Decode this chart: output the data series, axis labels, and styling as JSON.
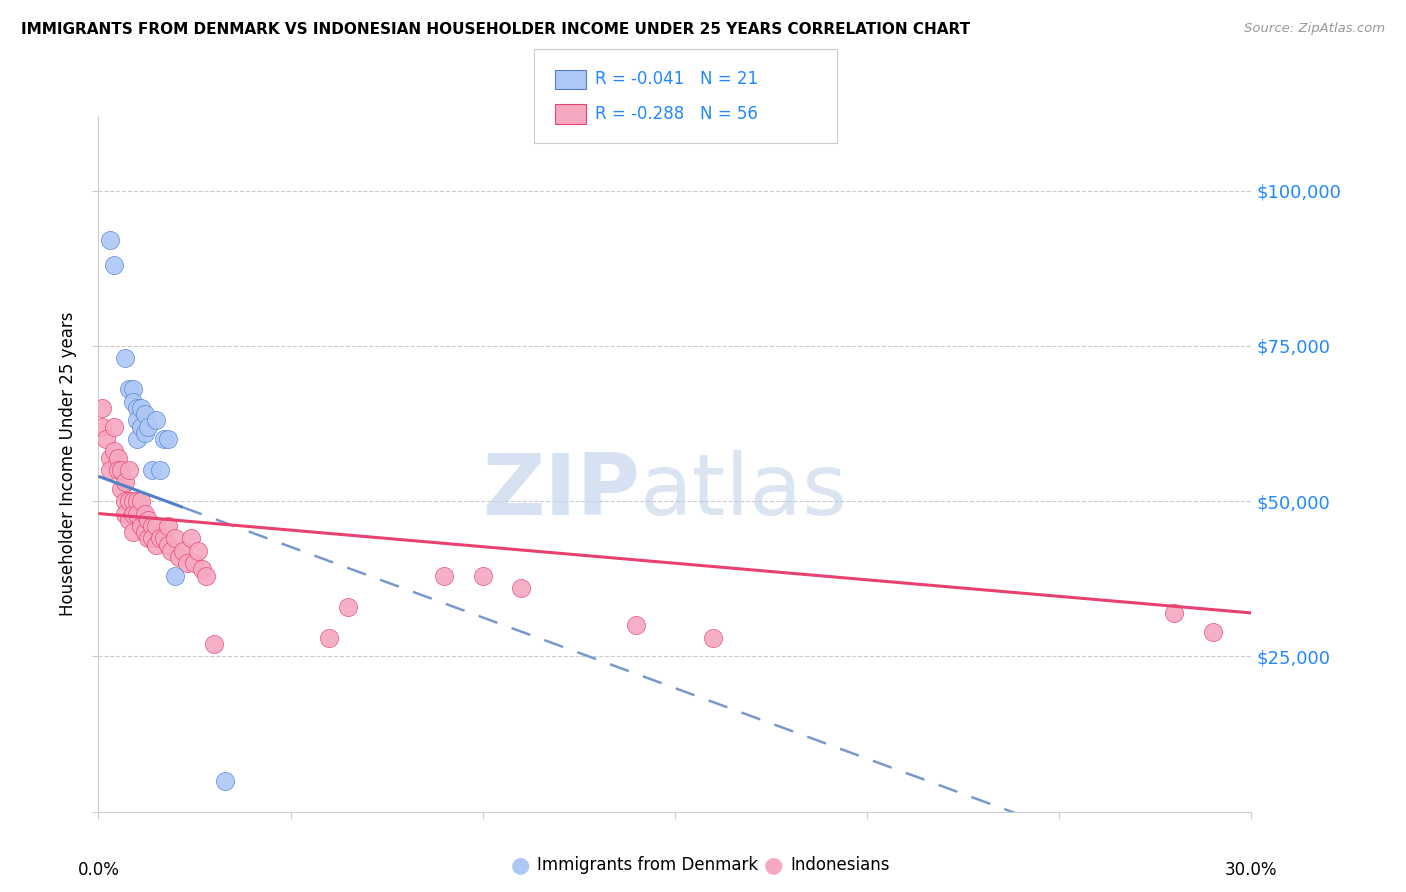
{
  "title": "IMMIGRANTS FROM DENMARK VS INDONESIAN HOUSEHOLDER INCOME UNDER 25 YEARS CORRELATION CHART",
  "source": "Source: ZipAtlas.com",
  "ylabel": "Householder Income Under 25 years",
  "legend_label1": "Immigrants from Denmark",
  "legend_label2": "Indonesians",
  "R1": -0.041,
  "N1": 21,
  "R2": -0.288,
  "N2": 56,
  "ytick_vals": [
    0,
    25000,
    50000,
    75000,
    100000
  ],
  "ytick_labels_right": [
    "",
    "$25,000",
    "$50,000",
    "$75,000",
    "$100,000"
  ],
  "xlim": [
    0.0,
    0.3
  ],
  "ylim": [
    0,
    112000
  ],
  "color_denmark": "#adc8f5",
  "color_indonesia": "#f5a8bf",
  "color_denmark_line": "#5080cc",
  "color_indonesia_line": "#e84070",
  "color_watermark_zip": "#c8d8f0",
  "color_watermark_atlas": "#b8cce8",
  "denmark_x": [
    0.003,
    0.004,
    0.007,
    0.008,
    0.009,
    0.009,
    0.01,
    0.01,
    0.01,
    0.011,
    0.011,
    0.012,
    0.012,
    0.013,
    0.014,
    0.015,
    0.016,
    0.017,
    0.018,
    0.02,
    0.033
  ],
  "denmark_y": [
    92000,
    88000,
    73000,
    68000,
    68000,
    66000,
    65000,
    63000,
    60000,
    65000,
    62000,
    64000,
    61000,
    62000,
    55000,
    63000,
    55000,
    60000,
    60000,
    38000,
    5000
  ],
  "indonesia_x": [
    0.001,
    0.001,
    0.002,
    0.003,
    0.003,
    0.004,
    0.004,
    0.005,
    0.005,
    0.006,
    0.006,
    0.007,
    0.007,
    0.007,
    0.008,
    0.008,
    0.008,
    0.009,
    0.009,
    0.009,
    0.01,
    0.01,
    0.011,
    0.011,
    0.012,
    0.012,
    0.013,
    0.013,
    0.014,
    0.014,
    0.015,
    0.015,
    0.016,
    0.017,
    0.018,
    0.018,
    0.019,
    0.02,
    0.021,
    0.022,
    0.023,
    0.024,
    0.025,
    0.026,
    0.027,
    0.028,
    0.03,
    0.06,
    0.065,
    0.09,
    0.1,
    0.11,
    0.14,
    0.16,
    0.28,
    0.29
  ],
  "indonesia_y": [
    65000,
    62000,
    60000,
    57000,
    55000,
    62000,
    58000,
    57000,
    55000,
    55000,
    52000,
    53000,
    50000,
    48000,
    55000,
    50000,
    47000,
    50000,
    48000,
    45000,
    50000,
    48000,
    50000,
    46000,
    48000,
    45000,
    47000,
    44000,
    46000,
    44000,
    46000,
    43000,
    44000,
    44000,
    46000,
    43000,
    42000,
    44000,
    41000,
    42000,
    40000,
    44000,
    40000,
    42000,
    39000,
    38000,
    27000,
    28000,
    33000,
    38000,
    38000,
    36000,
    30000,
    28000,
    32000,
    29000
  ],
  "dk_trend_x0": 0.0,
  "dk_trend_y0": 54000,
  "dk_trend_x1": 0.022,
  "dk_trend_y1": 49000,
  "id_trend_x0": 0.0,
  "id_trend_y0": 48000,
  "id_trend_x1": 0.3,
  "id_trend_y1": 32000
}
